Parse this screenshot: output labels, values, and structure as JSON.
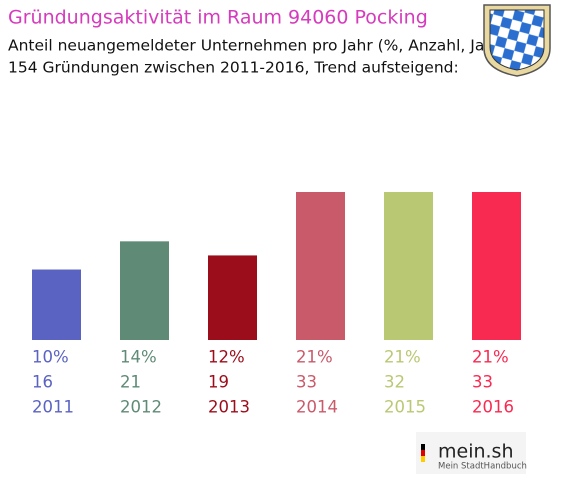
{
  "chart_data": {
    "type": "bar",
    "title": "Gründungsaktivität im Raum 94060 Pocking",
    "subtitle": [
      "Anteil neuangemeldeter Unternehmen pro Jahr (%, Anzahl, Jahr)",
      "154 Gründungen zwischen 2011-2016, Trend aufsteigend:"
    ],
    "categories": [
      "2011",
      "2012",
      "2013",
      "2014",
      "2015",
      "2016"
    ],
    "values": [
      10,
      14,
      12,
      21,
      21,
      21
    ],
    "value_labels": [
      "10%",
      "14%",
      "12%",
      "21%",
      "21%",
      "21%"
    ],
    "counts": [
      16,
      21,
      19,
      33,
      32,
      33
    ],
    "colors": [
      "#5b63c2",
      "#5f8a75",
      "#9b0d1a",
      "#c95a6a",
      "#b9c873",
      "#f82a52"
    ]
  },
  "footer": {
    "logo": "mein.sh",
    "tagline": "Mein StadtHandbuch"
  }
}
